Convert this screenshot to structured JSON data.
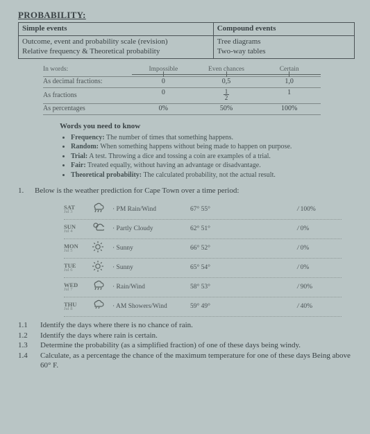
{
  "heading": "PROBABILITY:",
  "topics": {
    "left_hdr": "Simple events",
    "right_hdr": "Compound events",
    "left_r1": "Outcome, event and probability scale (revision)",
    "left_r2": "Relative frequency & Theoretical probability",
    "right_r1": "Tree diagrams",
    "right_r2": "Two-way tables"
  },
  "scale": {
    "row_hdr": "In words:",
    "col1": "Impossible",
    "col2": "Even chances",
    "col3": "Certain",
    "rows": [
      {
        "label": "As decimal fractions:",
        "c1": "0",
        "c2": "0,5",
        "c3": "1,0"
      },
      {
        "label": "As fractions",
        "c1": "0",
        "c2": "½",
        "c3": "1"
      },
      {
        "label": "As percentages",
        "c1": "0%",
        "c2": "50%",
        "c3": "100%"
      }
    ]
  },
  "words": {
    "title": "Words you need to know",
    "items": [
      {
        "term": "Frequency:",
        "def": " The number of times that something happens."
      },
      {
        "term": "Random:",
        "def": " When something happens without being made to happen on purpose."
      },
      {
        "term": "Trial:",
        "def": " A test. Throwing a dice and tossing a coin are examples of a trial."
      },
      {
        "term": "Fair:",
        "def": " Treated equally, without having an advantage or disadvantage."
      },
      {
        "term": "Theoretical probability:",
        "def": " The calculated probability, not the actual result."
      }
    ]
  },
  "q1": {
    "num": "1.",
    "text": "Below is the weather prediction for Cape Town over a time period:"
  },
  "weather": [
    {
      "day": "SAT",
      "sub": "Jul 3",
      "icon": "rain",
      "desc": "PM Rain/Wind",
      "temp": "67° 55°",
      "prob": "100%"
    },
    {
      "day": "SUN",
      "sub": "Jul 4",
      "icon": "partly",
      "desc": "Partly Cloudy",
      "temp": "62° 51°",
      "prob": "0%"
    },
    {
      "day": "MON",
      "sub": "Jul 5",
      "icon": "sunny",
      "desc": "Sunny",
      "temp": "66° 52°",
      "prob": "0%"
    },
    {
      "day": "TUE",
      "sub": "Jul 6",
      "icon": "sunny",
      "desc": "Sunny",
      "temp": "65° 54°",
      "prob": "0%"
    },
    {
      "day": "WED",
      "sub": "Jul 7",
      "icon": "rain",
      "desc": "Rain/Wind",
      "temp": "58° 53°",
      "prob": "90%"
    },
    {
      "day": "THU",
      "sub": "Jul 8",
      "icon": "shower",
      "desc": "AM Showers/Wind",
      "temp": "59° 49°",
      "prob": "40%"
    }
  ],
  "subq": [
    {
      "n": "1.1",
      "t": "Identify the days where there is no chance of rain."
    },
    {
      "n": "1.2",
      "t": "Identify the days where rain is certain."
    },
    {
      "n": "1.3",
      "t": "Determine the probability (as a simplified fraction) of one of these days being windy."
    },
    {
      "n": "1.4",
      "t": "Calculate, as a percentage the chance of the maximum temperature for one of these days Being above 60° F."
    }
  ],
  "colors": {
    "icon": "#5a6362"
  }
}
